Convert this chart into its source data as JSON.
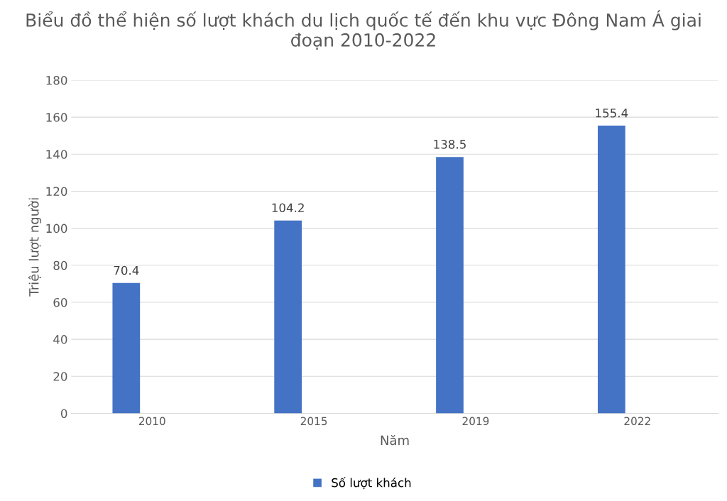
{
  "chart_data": {
    "type": "bar",
    "title": "Biểu đồ thể hiện số lượt khách du lịch quốc tế đến khu vực Đông Nam Á giai đoạn 2010-2022",
    "xlabel": "Năm",
    "ylabel": "Triệu lượt người",
    "categories": [
      "2010",
      "2015",
      "2019",
      "2022"
    ],
    "series": [
      {
        "name": "Số lượt khách",
        "color": "#4472c4",
        "values": [
          70.4,
          104.2,
          138.5,
          155.4
        ]
      }
    ],
    "ylim": [
      0,
      180
    ],
    "yticks": [
      0,
      20,
      40,
      60,
      80,
      100,
      120,
      140,
      160,
      180
    ],
    "grid": "y",
    "legend": "bottom",
    "data_labels": true
  }
}
